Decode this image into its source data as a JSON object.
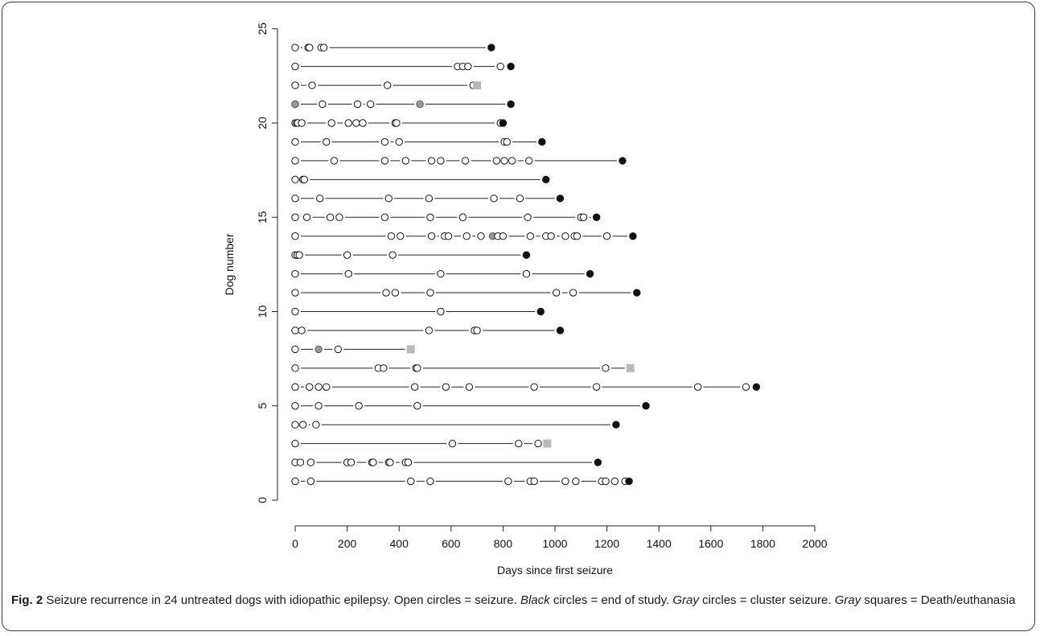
{
  "chart_data": {
    "type": "scatter",
    "xlabel": "Days since first seizure",
    "ylabel": "Dog number",
    "xlim": [
      0,
      2000
    ],
    "ylim": [
      0,
      25
    ],
    "x_ticks": [
      0,
      200,
      400,
      600,
      800,
      1000,
      1200,
      1400,
      1600,
      1800,
      2000
    ],
    "y_ticks": [
      0,
      5,
      10,
      15,
      20,
      25
    ],
    "grid": false,
    "legend": "none",
    "colors": {
      "seizure": "#ffffff",
      "end_of_study": "#111111",
      "cluster": "#9a9a9a",
      "death": "#b9b9b9",
      "line": "#222222"
    },
    "dogs": [
      {
        "dog": 1,
        "seizures": [
          0,
          60,
          445,
          520,
          820,
          905,
          920,
          1040,
          1080,
          1180,
          1195,
          1230,
          1270
        ],
        "cluster": [],
        "end": {
          "type": "end_of_study",
          "day": 1285
        }
      },
      {
        "dog": 2,
        "seizures": [
          0,
          20,
          60,
          200,
          215,
          295,
          300,
          360,
          365,
          425,
          435
        ],
        "cluster": [],
        "end": {
          "type": "end_of_study",
          "day": 1165
        }
      },
      {
        "dog": 3,
        "seizures": [
          0,
          605,
          860,
          935
        ],
        "cluster": [],
        "end": {
          "type": "death",
          "day": 970
        }
      },
      {
        "dog": 4,
        "seizures": [
          0,
          30,
          80
        ],
        "cluster": [],
        "end": {
          "type": "end_of_study",
          "day": 1235
        }
      },
      {
        "dog": 5,
        "seizures": [
          0,
          90,
          245,
          470
        ],
        "cluster": [],
        "end": {
          "type": "end_of_study",
          "day": 1350
        }
      },
      {
        "dog": 6,
        "seizures": [
          0,
          55,
          90,
          120,
          460,
          580,
          670,
          920,
          1160,
          1550,
          1735
        ],
        "cluster": [],
        "end": {
          "type": "end_of_study",
          "day": 1775
        }
      },
      {
        "dog": 7,
        "seizures": [
          0,
          320,
          340,
          465,
          470,
          1195
        ],
        "cluster": [],
        "end": {
          "type": "death",
          "day": 1290
        }
      },
      {
        "dog": 8,
        "seizures": [
          0,
          165
        ],
        "cluster": [
          90
        ],
        "end": {
          "type": "death",
          "day": 445
        }
      },
      {
        "dog": 9,
        "seizures": [
          0,
          25,
          515,
          690,
          700
        ],
        "cluster": [],
        "end": {
          "type": "end_of_study",
          "day": 1020
        }
      },
      {
        "dog": 10,
        "seizures": [
          0,
          560
        ],
        "cluster": [],
        "end": {
          "type": "end_of_study",
          "day": 945
        }
      },
      {
        "dog": 11,
        "seizures": [
          0,
          350,
          385,
          520,
          1005,
          1070
        ],
        "cluster": [],
        "end": {
          "type": "end_of_study",
          "day": 1315
        }
      },
      {
        "dog": 12,
        "seizures": [
          0,
          205,
          560,
          890
        ],
        "cluster": [],
        "end": {
          "type": "end_of_study",
          "day": 1135
        }
      },
      {
        "dog": 13,
        "seizures": [
          0,
          8,
          16,
          200,
          375
        ],
        "cluster": [],
        "end": {
          "type": "end_of_study",
          "day": 890
        }
      },
      {
        "dog": 14,
        "seizures": [
          0,
          370,
          405,
          525,
          575,
          590,
          660,
          715,
          780,
          800,
          905,
          965,
          985,
          1040,
          1075,
          1085,
          1200
        ],
        "cluster": [
          760
        ],
        "end": {
          "type": "end_of_study",
          "day": 1300
        }
      },
      {
        "dog": 15,
        "seizures": [
          0,
          45,
          135,
          170,
          345,
          520,
          645,
          895,
          1100,
          1110
        ],
        "cluster": [],
        "end": {
          "type": "end_of_study",
          "day": 1160
        }
      },
      {
        "dog": 16,
        "seizures": [
          0,
          95,
          360,
          515,
          765,
          865
        ],
        "cluster": [],
        "end": {
          "type": "end_of_study",
          "day": 1020
        }
      },
      {
        "dog": 17,
        "seizures": [
          0,
          30,
          35
        ],
        "cluster": [],
        "end": {
          "type": "end_of_study",
          "day": 965
        }
      },
      {
        "dog": 18,
        "seizures": [
          0,
          150,
          345,
          425,
          525,
          560,
          655,
          775,
          805,
          835,
          900
        ],
        "cluster": [],
        "end": {
          "type": "end_of_study",
          "day": 1260
        }
      },
      {
        "dog": 19,
        "seizures": [
          0,
          120,
          345,
          400,
          805,
          815
        ],
        "cluster": [],
        "end": {
          "type": "end_of_study",
          "day": 950
        }
      },
      {
        "dog": 20,
        "seizures": [
          0,
          10,
          25,
          140,
          205,
          235,
          260,
          385,
          390,
          790
        ],
        "cluster": [
          5
        ],
        "end": {
          "type": "end_of_study",
          "day": 800
        }
      },
      {
        "dog": 21,
        "seizures": [
          0,
          105,
          240,
          290
        ],
        "cluster": [
          0,
          480
        ],
        "end": {
          "type": "end_of_study",
          "day": 830
        }
      },
      {
        "dog": 22,
        "seizures": [
          0,
          65,
          355,
          685
        ],
        "cluster": [],
        "end": {
          "type": "death",
          "day": 700
        }
      },
      {
        "dog": 23,
        "seizures": [
          0,
          625,
          645,
          665,
          790
        ],
        "cluster": [],
        "end": {
          "type": "end_of_study",
          "day": 830
        }
      },
      {
        "dog": 24,
        "seizures": [
          0,
          50,
          55,
          100,
          110
        ],
        "cluster": [],
        "end": {
          "type": "end_of_study",
          "day": 755
        }
      }
    ]
  },
  "caption": {
    "fig_label": "Fig. 2",
    "part1": " Seizure recurrence in 24 untreated dogs with idiopathic epilepsy. Open circles = seizure. ",
    "black": "Black",
    "part2": " circles = end of study. ",
    "gray1": "Gray",
    "part3": " circles = cluster seizure. ",
    "gray2": "Gray",
    "part4": " squares = Death/euthanasia"
  }
}
